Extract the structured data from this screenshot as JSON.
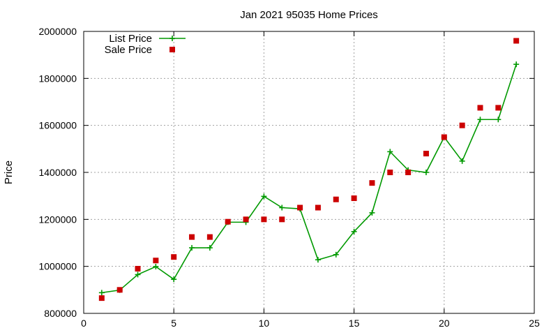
{
  "chart_data": {
    "type": "line",
    "title": "Jan 2021 95035 Home Prices",
    "xlabel": "",
    "ylabel": "Price",
    "xlim": [
      0,
      25
    ],
    "ylim": [
      800000,
      2000000
    ],
    "xticks": [
      0,
      5,
      10,
      15,
      20,
      25
    ],
    "yticks": [
      800000,
      1000000,
      1200000,
      1400000,
      1600000,
      1800000,
      2000000
    ],
    "xtick_labels": [
      "0",
      "5",
      "10",
      "15",
      "20",
      "25"
    ],
    "ytick_labels": [
      "800000",
      "1000000",
      "1200000",
      "1400000",
      "1600000",
      "1800000",
      "2000000"
    ],
    "grid": true,
    "legend_position": "top-left",
    "series": [
      {
        "name": "List Price",
        "style": "linespoints",
        "marker": "plus",
        "color": "#009900",
        "x": [
          1,
          2,
          3,
          4,
          5,
          6,
          7,
          8,
          9,
          10,
          11,
          12,
          13,
          14,
          15,
          16,
          17,
          18,
          19,
          20,
          21,
          22,
          23,
          24
        ],
        "y": [
          888000,
          899000,
          965000,
          999000,
          945000,
          1079000,
          1079000,
          1188000,
          1188000,
          1298000,
          1250000,
          1245000,
          1028000,
          1050000,
          1148000,
          1228000,
          1488000,
          1410000,
          1400000,
          1550000,
          1448000,
          1625000,
          1625000,
          1860000
        ]
      },
      {
        "name": "Sale Price",
        "style": "points",
        "marker": "square",
        "color": "#cc0000",
        "x": [
          1,
          2,
          3,
          4,
          5,
          6,
          7,
          8,
          9,
          10,
          11,
          12,
          13,
          14,
          15,
          16,
          17,
          18,
          19,
          20,
          21,
          22,
          23,
          24
        ],
        "y": [
          865000,
          900000,
          990000,
          1025000,
          1040000,
          1125000,
          1125000,
          1190000,
          1200000,
          1200000,
          1200000,
          1250000,
          1250000,
          1285000,
          1290000,
          1355000,
          1400000,
          1400000,
          1480000,
          1550000,
          1600000,
          1675000,
          1675000,
          1960000
        ]
      }
    ]
  }
}
